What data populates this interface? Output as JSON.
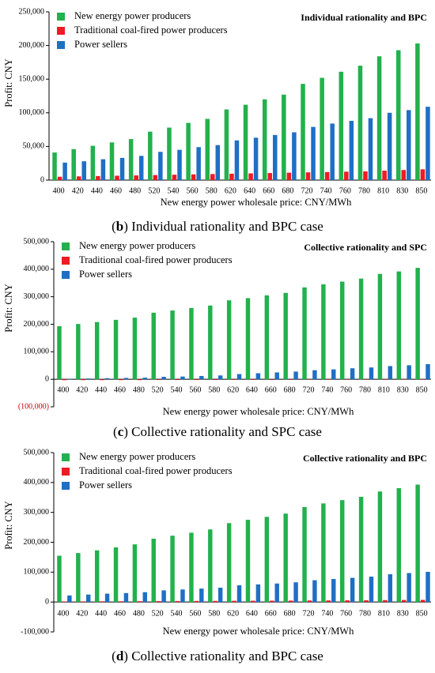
{
  "chart_data": [
    {
      "type": "bar",
      "title": "Individual rationality and BPC",
      "caption": [
        "(",
        "b",
        ") Individual rationality and BPC case"
      ],
      "xlabel": "New energy power wholesale price: CNY/MWh",
      "ylabel": "Profit: CNY",
      "legend": "upper left",
      "categories": [
        "400",
        "420",
        "440",
        "460",
        "480",
        "520",
        "540",
        "560",
        "580",
        "620",
        "640",
        "660",
        "680",
        "720",
        "740",
        "760",
        "780",
        "810",
        "830",
        "850"
      ],
      "ylim": [
        0,
        250000
      ],
      "yticks": [
        0,
        {
          "value": 50000,
          "label": "50,000"
        },
        {
          "value": 100000,
          "label": "100,000"
        },
        {
          "value": 150000,
          "label": "150,000"
        },
        {
          "value": 200000,
          "label": "200,000"
        },
        {
          "value": 250000,
          "label": "250,000"
        }
      ],
      "series": [
        {
          "name": "New energy power producers",
          "color": "#22b14c",
          "values": [
            41000,
            46000,
            51000,
            56000,
            61000,
            72000,
            78000,
            85000,
            91000,
            105000,
            112000,
            120000,
            127000,
            143000,
            152000,
            161000,
            170000,
            184000,
            193000,
            203000
          ]
        },
        {
          "name": "Traditional coal-fired power producers",
          "color": "#ed1c24",
          "values": [
            5000,
            5500,
            6000,
            6500,
            7000,
            7500,
            8000,
            8500,
            9000,
            9500,
            10000,
            10500,
            11000,
            11500,
            12000,
            12500,
            13000,
            14000,
            15000,
            16000
          ]
        },
        {
          "name": "Power sellers",
          "color": "#1f6fc5",
          "values": [
            26000,
            28000,
            31000,
            33000,
            36000,
            42000,
            45000,
            49000,
            52000,
            59000,
            63000,
            67000,
            71000,
            79000,
            84000,
            88000,
            92000,
            100000,
            104000,
            109000
          ]
        }
      ]
    },
    {
      "type": "bar",
      "title": "Collective rationality and SPC",
      "caption": [
        "(",
        "c",
        ") Collective rationality and SPC case"
      ],
      "xlabel": "New energy power wholesale price: CNY/MWh",
      "ylabel": "Profit: CNY",
      "legend": "upper left",
      "categories": [
        "400",
        "420",
        "440",
        "460",
        "480",
        "520",
        "540",
        "560",
        "580",
        "620",
        "640",
        "660",
        "680",
        "720",
        "740",
        "760",
        "780",
        "810",
        "830",
        "850"
      ],
      "ylim": [
        -100000,
        500000
      ],
      "yticks": [
        {
          "value": -100000,
          "label": "(100,000)",
          "color": "#d00000"
        },
        0,
        {
          "value": 100000,
          "label": "100,000"
        },
        {
          "value": 200000,
          "label": "200,000"
        },
        {
          "value": 300000,
          "label": "300,000"
        },
        {
          "value": 400000,
          "label": "400,000"
        },
        {
          "value": 500000,
          "label": "500,000"
        }
      ],
      "series": [
        {
          "name": "New energy power producers",
          "color": "#22b14c",
          "values": [
            193000,
            201000,
            208000,
            216000,
            224000,
            242000,
            250000,
            259000,
            268000,
            287000,
            295000,
            305000,
            314000,
            334000,
            345000,
            355000,
            366000,
            383000,
            392000,
            405000
          ]
        },
        {
          "name": "Traditional coal-fired power producers",
          "color": "#ed1c24",
          "values": [
            -3000,
            -3000,
            -3000,
            -3000,
            -3000,
            -2500,
            -2500,
            -2500,
            -2500,
            -2000,
            -2000,
            -2000,
            -2000,
            -1500,
            -1500,
            -1500,
            -1500,
            -1000,
            -1000,
            -1000
          ]
        },
        {
          "name": "Power sellers",
          "color": "#1f6fc5",
          "values": [
            2000,
            3000,
            4000,
            5000,
            6000,
            9000,
            10000,
            12000,
            14000,
            19000,
            22000,
            25000,
            28000,
            33000,
            36000,
            40000,
            43000,
            48000,
            51000,
            55000
          ]
        }
      ]
    },
    {
      "type": "bar",
      "title": "Collective rationality and BPC",
      "caption": [
        "(",
        "d",
        ") Collective rationality and BPC case"
      ],
      "xlabel": "New energy power wholesale price: CNY/MWh",
      "ylabel": "Profit: CNY",
      "legend": "upper left",
      "categories": [
        "400",
        "420",
        "440",
        "460",
        "480",
        "520",
        "540",
        "560",
        "580",
        "620",
        "640",
        "660",
        "680",
        "720",
        "740",
        "760",
        "780",
        "810",
        "830",
        "850"
      ],
      "ylim": [
        -100000,
        500000
      ],
      "yticks": [
        {
          "value": -100000,
          "label": "-100,000"
        },
        0,
        {
          "value": 100000,
          "label": "100,000"
        },
        {
          "value": 200000,
          "label": "200,000"
        },
        {
          "value": 300000,
          "label": "300,000"
        },
        {
          "value": 400000,
          "label": "400,000"
        },
        {
          "value": 500000,
          "label": "500,000"
        }
      ],
      "series": [
        {
          "name": "New energy power producers",
          "color": "#22b14c",
          "values": [
            155000,
            164000,
            173000,
            183000,
            193000,
            212000,
            222000,
            232000,
            243000,
            264000,
            275000,
            285000,
            296000,
            318000,
            330000,
            341000,
            352000,
            370000,
            381000,
            393000
          ]
        },
        {
          "name": "Traditional coal-fired power producers",
          "color": "#ed1c24",
          "values": [
            2000,
            2200,
            2400,
            2600,
            2800,
            3200,
            3400,
            3600,
            3800,
            4200,
            4400,
            4600,
            4800,
            5200,
            5400,
            5600,
            5800,
            6400,
            6800,
            7200
          ]
        },
        {
          "name": "Power sellers",
          "color": "#1f6fc5",
          "values": [
            22000,
            25000,
            28000,
            30000,
            33000,
            39000,
            42000,
            45000,
            48000,
            56000,
            59000,
            62000,
            66000,
            73000,
            77000,
            81000,
            85000,
            93000,
            97000,
            101000
          ]
        }
      ]
    }
  ]
}
